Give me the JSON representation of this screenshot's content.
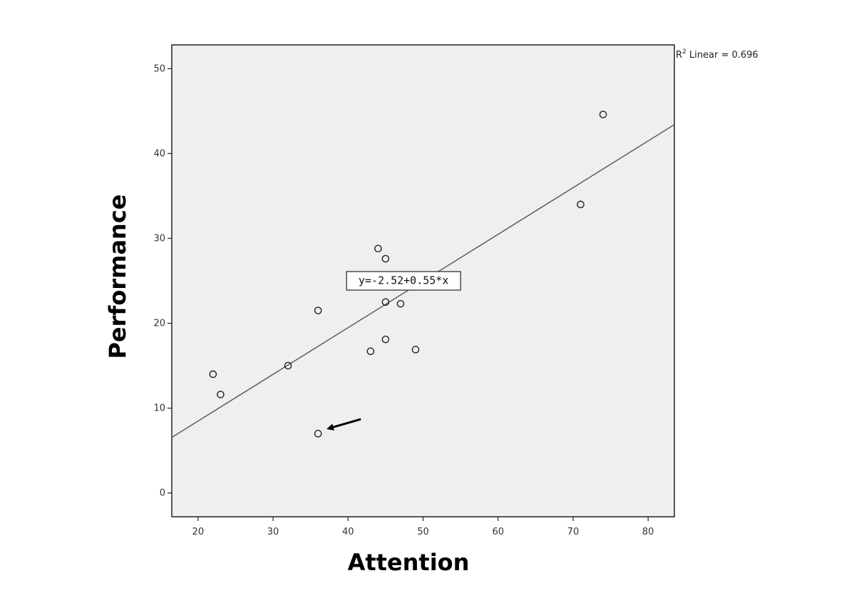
{
  "chart_data": {
    "type": "scatter",
    "title": "",
    "xlabel": "Attention",
    "ylabel": "Performance",
    "xlim": [
      16.5,
      83.5
    ],
    "ylim": [
      -2.8,
      52.8
    ],
    "xticks": [
      20,
      30,
      40,
      50,
      60,
      70,
      80
    ],
    "yticks": [
      0,
      10,
      20,
      30,
      40,
      50
    ],
    "grid": false,
    "series": [
      {
        "points": [
          {
            "x": 22,
            "y": 14.0
          },
          {
            "x": 23,
            "y": 11.6
          },
          {
            "x": 32,
            "y": 15.0
          },
          {
            "x": 36,
            "y": 21.5
          },
          {
            "x": 36,
            "y": 7.0
          },
          {
            "x": 43,
            "y": 16.7
          },
          {
            "x": 44,
            "y": 28.8
          },
          {
            "x": 45,
            "y": 27.6
          },
          {
            "x": 45,
            "y": 22.5
          },
          {
            "x": 45,
            "y": 18.1
          },
          {
            "x": 47,
            "y": 22.3
          },
          {
            "x": 49,
            "y": 16.9
          },
          {
            "x": 71,
            "y": 34.0
          },
          {
            "x": 74,
            "y": 44.6
          }
        ]
      }
    ],
    "fit_line": {
      "intercept": -2.52,
      "slope": 0.55,
      "equation_label": "y=-2.52+0.55*x",
      "equation_anchor": {
        "x": 47.4,
        "y": 25.0
      }
    },
    "r2_label": {
      "prefix": "R",
      "superscript": "2",
      "text": " Linear = 0.696"
    },
    "annotation": {
      "type": "arrow",
      "target": {
        "x": 37.4,
        "y": 7.6
      },
      "from": {
        "x": 41.7,
        "y": 8.7
      }
    }
  }
}
